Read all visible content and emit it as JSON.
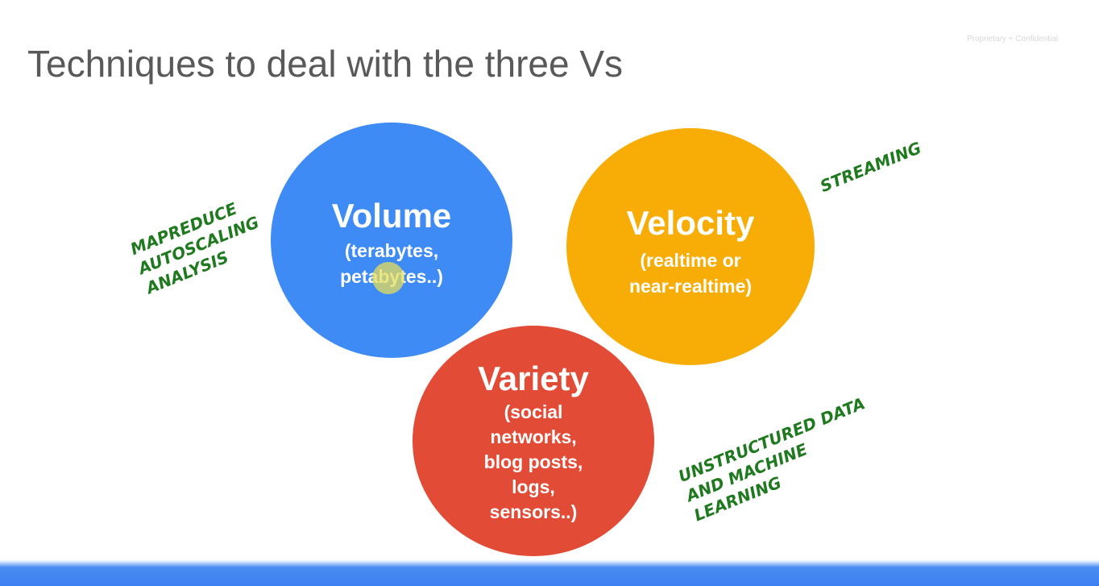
{
  "slide": {
    "title": "Techniques to deal with the three Vs",
    "confidential_label": "Proprietary + Confidential"
  },
  "circles": {
    "volume": {
      "name": "Volume",
      "detail": "(terabytes,\npetabytes..)",
      "color": "#3f8bf5"
    },
    "velocity": {
      "name": "Velocity",
      "detail": "(realtime or\nnear-realtime)",
      "color": "#f8ad06"
    },
    "variety": {
      "name": "Variety",
      "detail": "(social\nnetworks,\nblog posts,\nlogs,\nsensors..)",
      "color": "#e24c36"
    }
  },
  "annotations": {
    "volume_note": "MAPREDUCE\nAUTOSCALING\nANALYSIS",
    "velocity_note": "STREAMING",
    "variety_note": "UNSTRUCTURED DATA\nAND MACHINE\nLEARNING",
    "ink_color": "#1f7a1f"
  },
  "footer": {
    "bar_color": "#3d7ff0"
  }
}
